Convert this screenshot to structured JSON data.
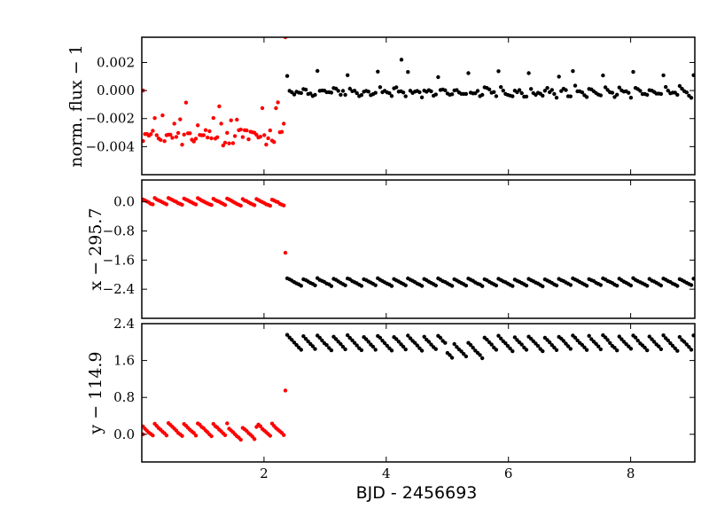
{
  "figure": {
    "xlabel": "BJD - 2456693"
  },
  "chart_data": [
    {
      "type": "scatter",
      "panel": "flux",
      "xlabel": "",
      "ylabel": "norm. flux − 1",
      "xlim": [
        0,
        9.05
      ],
      "ylim": [
        -0.006,
        0.0038
      ],
      "yticks": [
        {
          "value": 0.002,
          "label": "0.002"
        },
        {
          "value": 0.0,
          "label": "0.000"
        },
        {
          "value": -0.002,
          "label": "−0.002"
        },
        {
          "value": -0.004,
          "label": "−0.004"
        }
      ],
      "xticks": [
        2,
        4,
        6,
        8
      ],
      "show_xticklabels": false,
      "series_colors": {
        "red": "#ff0000",
        "black": "#000000"
      }
    },
    {
      "type": "scatter",
      "panel": "x",
      "xlabel": "",
      "ylabel": "x − 295.7",
      "xlim": [
        0,
        9.05
      ],
      "ylim": [
        -3.2,
        0.6
      ],
      "yticks": [
        {
          "value": 0.0,
          "label": "0.0"
        },
        {
          "value": -0.8,
          "label": "−0.8"
        },
        {
          "value": -1.6,
          "label": "−1.6"
        },
        {
          "value": -2.4,
          "label": "−2.4"
        }
      ],
      "xticks": [
        2,
        4,
        6,
        8
      ],
      "show_xticklabels": false,
      "series_colors": {
        "red": "#ff0000",
        "black": "#000000"
      }
    },
    {
      "type": "scatter",
      "panel": "y",
      "xlabel": "BJD - 2456693",
      "ylabel": "y − 114.9",
      "xlim": [
        0,
        9.05
      ],
      "ylim": [
        -0.6,
        2.4
      ],
      "yticks": [
        {
          "value": 2.4,
          "label": "2.4"
        },
        {
          "value": 1.6,
          "label": "1.6"
        },
        {
          "value": 0.8,
          "label": "0.8"
        },
        {
          "value": 0.0,
          "label": "0.0"
        }
      ],
      "xticks": [
        2,
        4,
        6,
        8
      ],
      "xticklabels": [
        "2",
        "4",
        "6",
        "8"
      ],
      "show_xticklabels": true,
      "series_colors": {
        "red": "#ff0000",
        "black": "#000000"
      }
    }
  ]
}
